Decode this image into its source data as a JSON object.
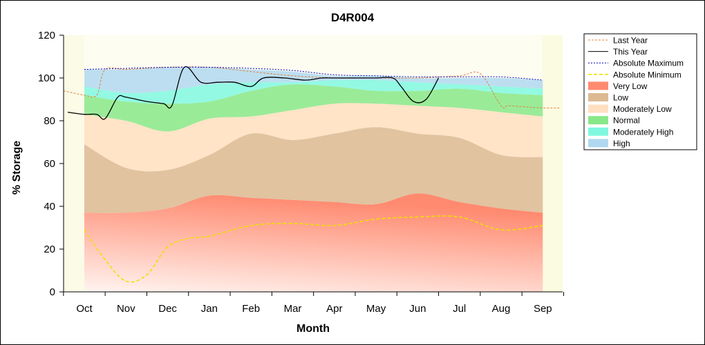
{
  "chart_data": {
    "type": "area",
    "title": "D4R004",
    "xlabel": "Month",
    "ylabel": "% Storage",
    "ylim": [
      0,
      120
    ],
    "yticks": [
      0,
      20,
      40,
      60,
      80,
      100,
      120
    ],
    "categories": [
      "Oct",
      "Nov",
      "Dec",
      "Jan",
      "Feb",
      "Mar",
      "Apr",
      "May",
      "Jun",
      "Jul",
      "Aug",
      "Sep"
    ],
    "legend_position": "right",
    "bands": [
      {
        "name": "Very Low",
        "color": "#ff8a70",
        "lower": [
          0,
          0,
          0,
          0,
          0,
          0,
          0,
          0,
          0,
          0,
          0,
          0
        ],
        "upper": [
          37,
          37,
          39,
          45,
          44,
          43,
          42,
          41,
          46,
          42,
          39,
          37
        ]
      },
      {
        "name": "Low",
        "color": "#dcb992",
        "lower": [
          37,
          37,
          39,
          45,
          44,
          43,
          42,
          41,
          46,
          42,
          39,
          37
        ],
        "upper": [
          69,
          58,
          57,
          64,
          74,
          71,
          74,
          77,
          74,
          72,
          64,
          63
        ]
      },
      {
        "name": "Moderately Low",
        "color": "#ffdfc0",
        "lower": [
          69,
          58,
          57,
          64,
          74,
          71,
          74,
          77,
          74,
          72,
          64,
          63
        ],
        "upper": [
          83,
          80,
          75,
          81,
          82,
          85,
          88,
          88,
          87,
          86,
          84,
          82
        ]
      },
      {
        "name": "Normal",
        "color": "#88e888",
        "lower": [
          83,
          80,
          75,
          81,
          82,
          85,
          88,
          88,
          87,
          86,
          84,
          82
        ],
        "upper": [
          92,
          89,
          88,
          89,
          94,
          97,
          96,
          94,
          94,
          95,
          93,
          92
        ]
      },
      {
        "name": "Moderately High",
        "color": "#80f8e0",
        "lower": [
          92,
          89,
          88,
          89,
          94,
          97,
          96,
          94,
          94,
          95,
          93,
          92
        ],
        "upper": [
          96,
          93,
          94,
          97,
          98,
          98,
          99,
          99,
          98,
          97,
          96,
          95
        ]
      },
      {
        "name": "High",
        "color": "#b0d8f0",
        "lower": [
          96,
          93,
          94,
          97,
          98,
          98,
          99,
          99,
          98,
          97,
          96,
          95
        ],
        "upper": [
          104,
          104,
          105,
          105,
          104,
          103,
          101,
          101,
          100,
          100,
          100,
          99
        ]
      }
    ],
    "lines": [
      {
        "name": "Last Year",
        "color": "#e08040",
        "dash": "3,2",
        "x": [
          -0.5,
          0.0,
          0.3,
          0.5,
          1.0,
          2.0,
          3.0,
          4.0,
          5.0,
          6.0,
          7.0,
          8.0,
          9.0,
          9.5,
          10.0,
          10.2,
          11.0,
          11.4
        ],
        "y": [
          94,
          92,
          92,
          104,
          104,
          105,
          105,
          103,
          101,
          100,
          100,
          100,
          101,
          102,
          87,
          87,
          86,
          86
        ]
      },
      {
        "name": "This Year",
        "color": "#000000",
        "dash": "",
        "x": [
          -0.4,
          0.0,
          0.3,
          0.5,
          0.8,
          1.0,
          1.5,
          1.9,
          2.1,
          2.4,
          2.8,
          3.2,
          3.6,
          4.0,
          4.3,
          4.8,
          5.3,
          5.7,
          6.0,
          6.6,
          7.0,
          7.4,
          7.6,
          7.9,
          8.2,
          8.5
        ],
        "y": [
          84,
          83,
          83,
          81,
          91,
          91,
          89,
          88,
          87,
          105,
          98,
          98,
          98,
          96,
          100,
          100,
          99,
          100,
          100,
          100,
          100,
          100,
          96,
          89,
          90,
          100
        ]
      },
      {
        "name": "Absolute Maximum",
        "color": "#0000c0",
        "dash": "2,2",
        "x": [
          0,
          1,
          2,
          3,
          4,
          5,
          6,
          7,
          8,
          9,
          10,
          11
        ],
        "y": [
          104,
          104.5,
          105,
          105,
          104.5,
          103.5,
          101.5,
          101,
          100.5,
          100.5,
          100.5,
          99
        ]
      },
      {
        "name": "Absolute Minimum",
        "color": "#f0e000",
        "dash": "5,3",
        "x": [
          0,
          0.5,
          1.0,
          1.5,
          2.0,
          2.5,
          3.0,
          4.0,
          5.0,
          6.0,
          7.0,
          8.0,
          9.0,
          10.0,
          11.0
        ],
        "y": [
          29,
          15,
          5,
          8,
          21,
          25,
          26,
          31,
          32,
          31,
          34,
          35,
          35,
          29,
          31
        ]
      }
    ]
  }
}
